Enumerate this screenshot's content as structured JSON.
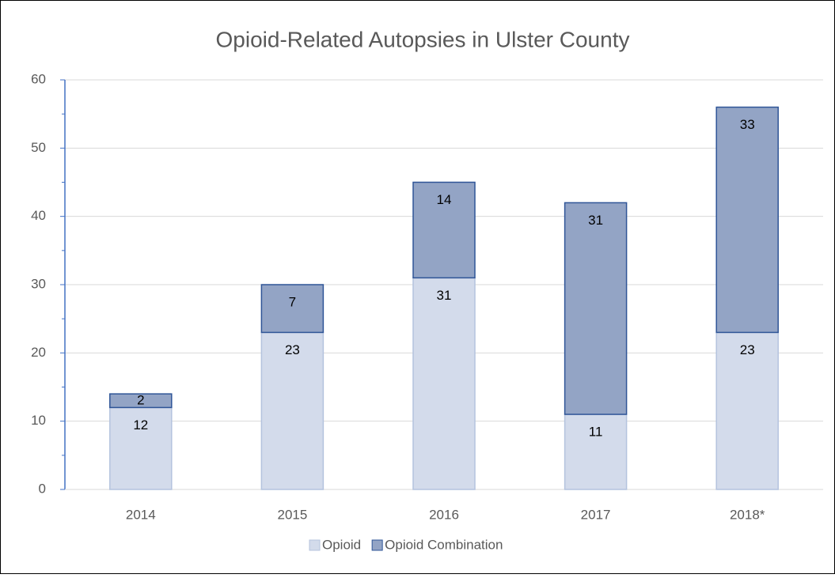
{
  "chart_data": {
    "type": "stacked_bar",
    "title": "Opioid-Related Autopsies in Ulster County",
    "categories": [
      "2014",
      "2015",
      "2016",
      "2017",
      "2018*"
    ],
    "series": [
      {
        "name": "Opioid",
        "color": "#d3dbeb",
        "values": [
          12,
          23,
          31,
          11,
          23
        ]
      },
      {
        "name": "Opioid Combination",
        "color": "#93a4c5",
        "values": [
          2,
          7,
          14,
          31,
          33
        ]
      }
    ],
    "ylim": [
      0,
      60
    ],
    "yticks": [
      0,
      10,
      20,
      30,
      40,
      50,
      60
    ],
    "grid": true,
    "legend": "bottom"
  }
}
